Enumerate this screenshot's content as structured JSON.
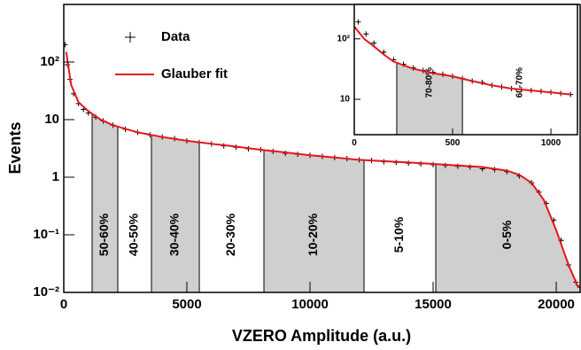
{
  "chart_data": [
    {
      "type": "line",
      "log_y": true,
      "legend": "upper left",
      "x_label": "VZERO Amplitude (a.u.)",
      "y_label": "Events",
      "xlim": [
        0,
        20970
      ],
      "ylim": [
        0.01,
        1000
      ],
      "xticks": [
        0,
        5000,
        10000,
        15000,
        20000
      ],
      "yticks": [
        {
          "value": 0.01,
          "label": "10⁻²"
        },
        {
          "value": 0.1,
          "label": "10⁻¹"
        },
        1,
        10,
        {
          "value": 100,
          "label": "10²"
        }
      ],
      "classes": [
        {
          "label": "50-60%",
          "range": [
            1151,
            2194
          ],
          "shaded": true
        },
        {
          "label": "40-50%",
          "range": [
            2194,
            3561
          ],
          "shaded": false
        },
        {
          "label": "30-40%",
          "range": [
            3561,
            5504
          ],
          "shaded": true
        },
        {
          "label": "20-30%",
          "range": [
            5504,
            8129
          ],
          "shaded": false
        },
        {
          "label": "10-20%",
          "range": [
            8129,
            12194
          ],
          "shaded": true
        },
        {
          "label": "5-10%",
          "range": [
            12194,
            15108
          ],
          "shaded": false
        },
        {
          "label": "0-5%",
          "range": [
            15108,
            20970
          ],
          "shaded": true
        }
      ],
      "series": [
        {
          "name": "Data",
          "color": "#000000",
          "style": "markers",
          "x": [
            50,
            150,
            250,
            400,
            600,
            800,
            1000,
            1300,
            1600,
            2000,
            2500,
            3000,
            3500,
            4000,
            4500,
            5000,
            5500,
            6000,
            6500,
            7000,
            7500,
            8000,
            8500,
            9000,
            9500,
            10000,
            10500,
            11000,
            11500,
            12000,
            12500,
            13000,
            13500,
            14000,
            14500,
            15000,
            15500,
            16000,
            16500,
            17000,
            17500,
            18000,
            18500,
            19000,
            19300,
            19600,
            19900,
            20200,
            20500,
            20800
          ],
          "values": [
            200,
            90,
            50,
            28,
            19,
            15,
            13,
            11,
            9.5,
            8,
            6.8,
            6,
            5.4,
            5,
            4.7,
            4.3,
            4,
            3.8,
            3.5,
            3.3,
            3.1,
            3,
            2.8,
            2.6,
            2.5,
            2.4,
            2.3,
            2.2,
            2.1,
            2,
            1.95,
            1.85,
            1.8,
            1.75,
            1.7,
            1.65,
            1.6,
            1.55,
            1.5,
            1.4,
            1.35,
            1.25,
            1.05,
            0.8,
            0.55,
            0.35,
            0.18,
            0.08,
            0.03,
            0.015
          ]
        },
        {
          "name": "Glauber fit",
          "color": "#e8141c",
          "style": "line",
          "x": [
            100,
            300,
            600,
            1000,
            1500,
            2000,
            3000,
            4000,
            5000,
            6000,
            7000,
            8000,
            9000,
            10000,
            11000,
            12000,
            13000,
            14000,
            15000,
            16000,
            17000,
            18000,
            18500,
            19000,
            19500,
            20000,
            20500,
            20900
          ],
          "values": [
            150,
            40,
            20,
            14,
            10,
            8,
            6,
            5,
            4.3,
            3.8,
            3.4,
            3,
            2.7,
            2.4,
            2.2,
            2,
            1.9,
            1.8,
            1.7,
            1.6,
            1.5,
            1.3,
            1.1,
            0.8,
            0.4,
            0.12,
            0.03,
            0.012
          ]
        }
      ]
    },
    {
      "type": "line",
      "log_y": true,
      "xlim": [
        0,
        1135
      ],
      "ylim": [
        2.6,
        370
      ],
      "xticks": [
        0,
        500,
        1000
      ],
      "yticks": [
        10,
        {
          "value": 100,
          "label": "10²"
        }
      ],
      "classes": [
        {
          "label": "70-80%",
          "range": [
            216,
            550
          ],
          "shaded": true
        },
        {
          "label": "60-70%",
          "range": [
            550,
            1151
          ],
          "shaded": false
        }
      ],
      "series": [
        {
          "color": "#000000",
          "style": "markers",
          "x": [
            20,
            60,
            100,
            150,
            200,
            250,
            300,
            350,
            400,
            450,
            500,
            550,
            600,
            650,
            700,
            750,
            800,
            850,
            900,
            950,
            1000,
            1050,
            1100
          ],
          "values": [
            190,
            120,
            85,
            60,
            45,
            38,
            33,
            30,
            28,
            26,
            24,
            22,
            20,
            19,
            17,
            16,
            15,
            14.5,
            14,
            13.5,
            13,
            12.5,
            12
          ]
        },
        {
          "color": "#e8141c",
          "style": "line",
          "x": [
            0,
            50,
            100,
            150,
            200,
            300,
            400,
            500,
            600,
            700,
            800,
            900,
            1000,
            1100
          ],
          "values": [
            160,
            100,
            75,
            55,
            42,
            32,
            27,
            24,
            20,
            17,
            15,
            14,
            13,
            12
          ]
        }
      ]
    }
  ]
}
